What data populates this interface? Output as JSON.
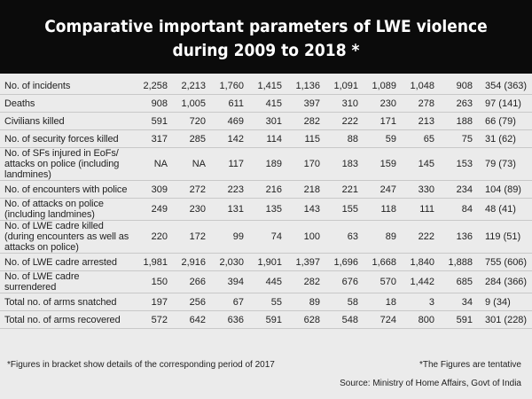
{
  "title": "Comparative important parameters of LWE violence during 2009 to 2018 *",
  "rows": [
    {
      "label": "No. of incidents",
      "values": [
        "2,258",
        "2,213",
        "1,760",
        "1,415",
        "1,136",
        "1,091",
        "1,089",
        "1,048",
        "908",
        "354 (363)"
      ]
    },
    {
      "label": "Deaths",
      "values": [
        "908",
        "1,005",
        "611",
        "415",
        "397",
        "310",
        "230",
        "278",
        "263",
        "97 (141)"
      ]
    },
    {
      "label": "Civilians killed",
      "values": [
        "591",
        "720",
        "469",
        "301",
        "282",
        "222",
        "171",
        "213",
        "188",
        "66 (79)"
      ]
    },
    {
      "label": "No. of security forces killed",
      "values": [
        "317",
        "285",
        "142",
        "114",
        "115",
        "88",
        "59",
        "65",
        "75",
        "31 (62)"
      ]
    },
    {
      "label": "No. of SFs injured in EoFs/ attacks on police (including landmines)",
      "values": [
        "NA",
        "NA",
        "117",
        "189",
        "170",
        "183",
        "159",
        "145",
        "153",
        "79 (73)"
      ]
    },
    {
      "label": "No. of encounters with police",
      "values": [
        "309",
        "272",
        "223",
        "216",
        "218",
        "221",
        "247",
        "330",
        "234",
        "104 (89)"
      ]
    },
    {
      "label": "No. of attacks on police (including landmines)",
      "values": [
        "249",
        "230",
        "131",
        "135",
        "143",
        "155",
        "118",
        "111",
        "84",
        "48 (41)"
      ]
    },
    {
      "label": "No. of LWE cadre killed (during encounters as well as attacks on police)",
      "values": [
        "220",
        "172",
        "99",
        "74",
        "100",
        "63",
        "89",
        "222",
        "136",
        "119 (51)"
      ]
    },
    {
      "label": "No. of LWE cadre arrested",
      "values": [
        "1,981",
        "2,916",
        "2,030",
        "1,901",
        "1,397",
        "1,696",
        "1,668",
        "1,840",
        "1,888",
        "755 (606)"
      ]
    },
    {
      "label": "No. of LWE cadre surrendered",
      "values": [
        "150",
        "266",
        "394",
        "445",
        "282",
        "676",
        "570",
        "1,442",
        "685",
        "284 (366)"
      ]
    },
    {
      "label": "Total no. of arms snatched",
      "values": [
        "197",
        "256",
        "67",
        "55",
        "89",
        "58",
        "18",
        "3",
        "34",
        "9 (34)"
      ]
    },
    {
      "label": "Total no. of arms recovered",
      "values": [
        "572",
        "642",
        "636",
        "591",
        "628",
        "548",
        "724",
        "800",
        "591",
        "301 (228)"
      ]
    }
  ],
  "footnote": "*Figures in bracket show details of the corresponding period of 2017",
  "tentative": "*The Figures are tentative",
  "source": "Source: Ministry of Home Affairs, Govt of India"
}
